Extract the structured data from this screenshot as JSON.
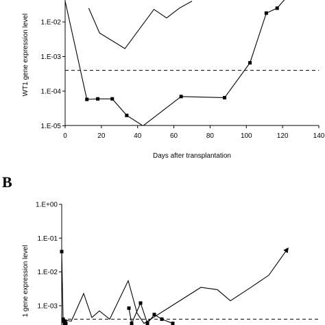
{
  "panels": [
    {
      "letter": "",
      "ylabel": "WT1 gene expression level",
      "xlabel": "Days after transplantation",
      "x_ticks": [
        "0",
        "20",
        "40",
        "60",
        "80",
        "100",
        "120",
        "140"
      ],
      "y_ticks": [
        "1.E-05",
        "1.E-04",
        "1.E-03",
        "1.E-02"
      ],
      "threshold": 0.0004
    },
    {
      "letter": "B",
      "ylabel": "1 gene expression level",
      "y_ticks": [
        "1.E-03",
        "1.E-02",
        "1.E-01",
        "1.E+00"
      ]
    }
  ],
  "chart_data": [
    {
      "type": "line",
      "xlabel": "Days after transplantation",
      "ylabel": "WT1 gene expression level",
      "xlim": [
        0,
        140
      ],
      "ylim": [
        1e-05,
        0.03
      ],
      "y_scale": "log",
      "threshold": 0.0004,
      "series": [
        {
          "marker": "none",
          "x": [
            13,
            19,
            33,
            49,
            56,
            63,
            70
          ],
          "y": [
            0.025,
            0.0048,
            0.0017,
            0.023,
            0.013,
            0.025,
            0.04
          ]
        },
        {
          "marker": "square",
          "x": [
            0,
            12,
            18,
            26,
            34,
            43,
            64,
            88,
            102,
            111,
            117,
            122
          ],
          "y": [
            0.04,
            5.8e-05,
            6e-05,
            6e-05,
            2e-05,
            1e-05,
            7e-05,
            6.5e-05,
            0.00066,
            0.018,
            0.025,
            0.05
          ]
        }
      ]
    },
    {
      "type": "line",
      "ylabel": "1 gene expression level",
      "ylim": [
        0.0003,
        1
      ],
      "y_scale": "log",
      "threshold": 0.0004,
      "series": [
        {
          "marker": "square",
          "x": [
            0,
            1,
            2,
            3,
            4,
            5
          ],
          "y": [
            0.04,
            0.0004,
            0.00035,
            0.0003,
            0.00035,
            0.0003
          ]
        },
        {
          "marker": "none",
          "x": [
            0,
            1,
            2,
            3,
            4,
            5,
            6,
            7,
            8,
            9
          ],
          "y": [
            0.00038,
            0.00035,
            0.0023,
            0.00045,
            0.0007,
            0.0004,
            0.0055,
            0.0006,
            0.0003,
            0.0004
          ]
        },
        {
          "marker": "square",
          "x": [
            10,
            11,
            12,
            13,
            14,
            15,
            16
          ],
          "y": [
            0.00085,
            0.0003,
            0.0012,
            0.0003,
            0.00055,
            0.0004,
            0.0003
          ]
        },
        {
          "marker": "none",
          "arrow": true,
          "x": [
            17,
            18,
            19,
            20,
            21,
            22,
            23
          ],
          "y": [
            0.0003,
            0.0035,
            0.003,
            0.0014,
            0.0035,
            0.008,
            0.05
          ]
        }
      ]
    }
  ]
}
